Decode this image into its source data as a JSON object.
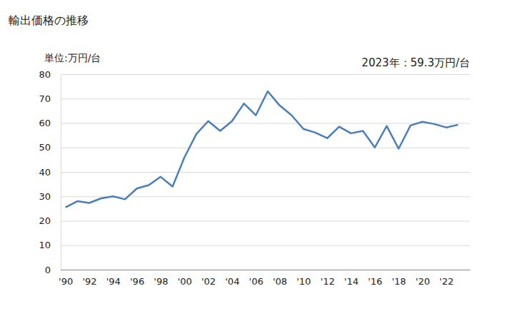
{
  "chart_data": {
    "type": "line",
    "title": "輸出価格の推移",
    "subtitle": "単位:万円/台",
    "annotation": "2023年：59.3万円/台",
    "x": [
      1990,
      1991,
      1992,
      1993,
      1994,
      1995,
      1996,
      1997,
      1998,
      1999,
      2000,
      2001,
      2002,
      2003,
      2004,
      2005,
      2006,
      2007,
      2008,
      2009,
      2010,
      2011,
      2012,
      2013,
      2014,
      2015,
      2016,
      2017,
      2018,
      2019,
      2020,
      2021,
      2022,
      2023
    ],
    "series": [
      {
        "name": "輸出価格",
        "color": "#4a7ebb",
        "values": [
          25.5,
          28,
          27.3,
          29.2,
          30,
          28.8,
          33.2,
          34.6,
          38,
          34,
          46,
          55.5,
          60.8,
          56.8,
          60.8,
          68,
          63.2,
          73,
          67.2,
          63.2,
          57.6,
          56.1,
          53.8,
          58.5,
          55.8,
          56.8,
          50,
          58.8,
          49.5,
          59,
          60.5,
          59.6,
          58.2,
          59.3
        ]
      }
    ],
    "xlim": [
      1989.6,
      2024
    ],
    "xticks": [
      {
        "value": 1990,
        "label": "'90"
      },
      {
        "value": 1992,
        "label": "'92"
      },
      {
        "value": 1994,
        "label": "'94"
      },
      {
        "value": 1996,
        "label": "'96"
      },
      {
        "value": 1998,
        "label": "'98"
      },
      {
        "value": 2000,
        "label": "'00"
      },
      {
        "value": 2002,
        "label": "'02"
      },
      {
        "value": 2004,
        "label": "'04"
      },
      {
        "value": 2006,
        "label": "'06"
      },
      {
        "value": 2008,
        "label": "'08"
      },
      {
        "value": 2010,
        "label": "'10"
      },
      {
        "value": 2012,
        "label": "'12"
      },
      {
        "value": 2014,
        "label": "'14"
      },
      {
        "value": 2016,
        "label": "'16"
      },
      {
        "value": 2018,
        "label": "'18"
      },
      {
        "value": 2020,
        "label": "'20"
      },
      {
        "value": 2022,
        "label": "'22"
      }
    ],
    "ylim": [
      0,
      80
    ],
    "yticks": [
      0,
      10,
      20,
      30,
      40,
      50,
      60,
      70,
      80
    ],
    "grid": true
  }
}
